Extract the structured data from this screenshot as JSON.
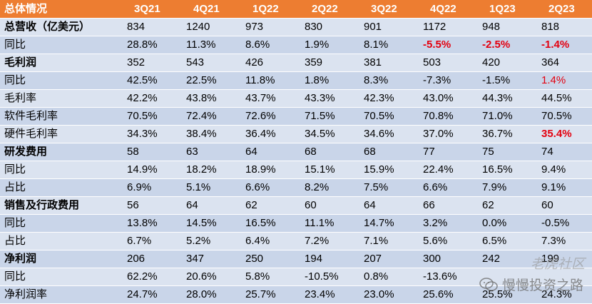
{
  "header": {
    "title": "总体情况",
    "quarters": [
      "3Q21",
      "4Q21",
      "1Q22",
      "2Q22",
      "3Q22",
      "4Q22",
      "1Q23",
      "2Q23"
    ]
  },
  "rows": [
    {
      "label": "总营收（亿美元）",
      "bold": true,
      "values": [
        "834",
        "1240",
        "973",
        "830",
        "901",
        "1172",
        "948",
        "818"
      ]
    },
    {
      "label": "同比",
      "bold": false,
      "values": [
        "28.8%",
        "11.3%",
        "8.6%",
        "1.9%",
        "8.1%",
        "-5.5%",
        "-2.5%",
        "-1.4%"
      ]
    },
    {
      "label": "毛利润",
      "bold": true,
      "values": [
        "352",
        "543",
        "426",
        "359",
        "381",
        "503",
        "420",
        "364"
      ]
    },
    {
      "label": "同比",
      "bold": false,
      "values": [
        "42.5%",
        "22.5%",
        "11.8%",
        "1.8%",
        "8.3%",
        "-7.3%",
        "-1.5%",
        "1.4%"
      ]
    },
    {
      "label": "毛利率",
      "bold": false,
      "values": [
        "42.2%",
        "43.8%",
        "43.7%",
        "43.3%",
        "42.3%",
        "43.0%",
        "44.3%",
        "44.5%"
      ]
    },
    {
      "label": "软件毛利率",
      "bold": false,
      "values": [
        "70.5%",
        "72.4%",
        "72.6%",
        "71.5%",
        "70.5%",
        "70.8%",
        "71.0%",
        "70.5%"
      ]
    },
    {
      "label": "硬件毛利率",
      "bold": false,
      "values": [
        "34.3%",
        "38.4%",
        "36.4%",
        "34.5%",
        "34.6%",
        "37.0%",
        "36.7%",
        "35.4%"
      ]
    },
    {
      "label": "研发费用",
      "bold": true,
      "values": [
        "58",
        "63",
        "64",
        "68",
        "68",
        "77",
        "75",
        "74"
      ]
    },
    {
      "label": "同比",
      "bold": false,
      "values": [
        "14.9%",
        "18.2%",
        "18.9%",
        "15.1%",
        "15.9%",
        "22.4%",
        "16.5%",
        "9.4%"
      ]
    },
    {
      "label": "占比",
      "bold": false,
      "values": [
        "6.9%",
        "5.1%",
        "6.6%",
        "8.2%",
        "7.5%",
        "6.6%",
        "7.9%",
        "9.1%"
      ]
    },
    {
      "label": "销售及行政费用",
      "bold": true,
      "values": [
        "56",
        "64",
        "62",
        "60",
        "64",
        "66",
        "62",
        "60"
      ]
    },
    {
      "label": "同比",
      "bold": false,
      "values": [
        "13.8%",
        "14.5%",
        "16.5%",
        "11.1%",
        "14.7%",
        "3.2%",
        "0.0%",
        "-0.5%"
      ]
    },
    {
      "label": "占比",
      "bold": false,
      "values": [
        "6.7%",
        "5.2%",
        "6.4%",
        "7.2%",
        "7.1%",
        "5.6%",
        "6.5%",
        "7.3%"
      ]
    },
    {
      "label": "净利润",
      "bold": true,
      "values": [
        "206",
        "347",
        "250",
        "194",
        "207",
        "300",
        "242",
        "199"
      ]
    },
    {
      "label": "同比",
      "bold": false,
      "values": [
        "62.2%",
        "20.6%",
        "5.8%",
        "-10.5%",
        "0.8%",
        "-13.6%",
        "",
        ""
      ]
    },
    {
      "label": "净利润率",
      "bold": false,
      "values": [
        "24.7%",
        "28.0%",
        "25.7%",
        "23.4%",
        "23.0%",
        "25.6%",
        "25.5%",
        "24.3%"
      ]
    }
  ],
  "highlights": {
    "red_bold": [
      [
        1,
        5
      ],
      [
        1,
        6
      ],
      [
        1,
        7
      ],
      [
        6,
        7
      ]
    ],
    "red": [
      [
        3,
        7
      ]
    ]
  },
  "colors": {
    "header_bg": "#ed7d31",
    "row_light": "#dbe3f0",
    "row_dark": "#c9d5e9",
    "highlight_red": "#e3000f"
  },
  "watermark": {
    "text": "慢慢投资之路",
    "site": "老虎社区",
    "icon": "wechat-icon"
  }
}
